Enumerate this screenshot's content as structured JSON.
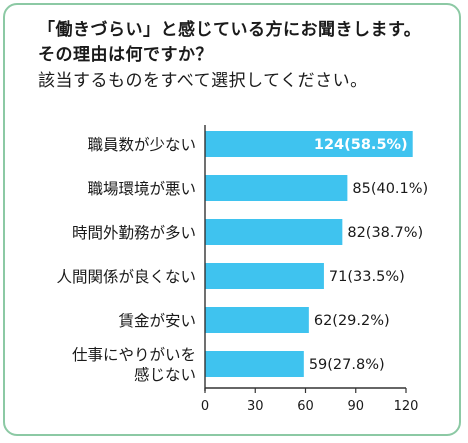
{
  "header": {
    "line1": "「働きづらい」と感じている方にお聞きします。",
    "line2": "その理由は何ですか？",
    "line3": "該当するものをすべて選択してください。"
  },
  "colors": {
    "bar": "#3fc3ef",
    "frame": "#8cc9a4",
    "axis": "#333333"
  },
  "chart_data": {
    "type": "bar",
    "orientation": "horizontal",
    "categories": [
      [
        "職員数が少ない"
      ],
      [
        "職場環境が悪い"
      ],
      [
        "時間外勤務が多い"
      ],
      [
        "人間関係が良くない"
      ],
      [
        "賃金が安い"
      ],
      [
        "仕事にやりがいを",
        "感じない"
      ]
    ],
    "values": [
      124,
      85,
      82,
      71,
      62,
      59
    ],
    "labels": [
      "124(58.5%)",
      "85(40.1%)",
      "82(38.7%)",
      "71(33.5%)",
      "62(29.2%)",
      "59(27.8%)"
    ],
    "xlim": [
      0,
      120
    ],
    "xticks": [
      "0",
      "30",
      "60",
      "90",
      "120"
    ],
    "grid": false,
    "xlabel": "",
    "ylabel": "",
    "title": ""
  }
}
